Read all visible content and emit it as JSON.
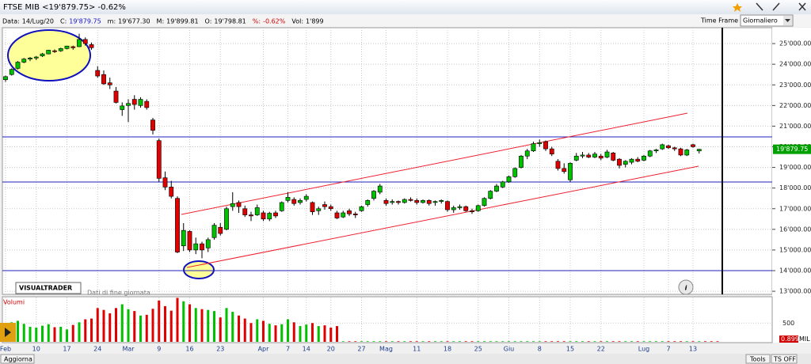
{
  "window": {
    "title": "FTSE MIB <19'879.75> -0.62%"
  },
  "info_bar": [
    {
      "label": "Data:",
      "value": "14/Lug/20"
    },
    {
      "label": "C:",
      "value": "19'879.75"
    },
    {
      "label": "m:",
      "value": "19'677.30"
    },
    {
      "label": "M:",
      "value": "19'899.81"
    },
    {
      "label": "O:",
      "value": "19'798.81"
    },
    {
      "label": "%:",
      "value": "-0.62%"
    },
    {
      "label": "Vol:",
      "value": "1'899"
    }
  ],
  "time_frame": {
    "label": "Time Frame",
    "value": "Giornaliero"
  },
  "logo": {
    "name": "VISUALTRADER",
    "note": "Dati di fine giornata"
  },
  "buttons": {
    "update": "Aggiorna",
    "tools": "Tools",
    "ts": "TS OFF"
  },
  "chart_data": {
    "type": "candlestick",
    "categories": [
      "Feb",
      null,
      null,
      null,
      null,
      "10",
      null,
      null,
      null,
      null,
      "17",
      null,
      null,
      null,
      null,
      "24",
      null,
      null,
      null,
      null,
      "Mar",
      null,
      null,
      null,
      null,
      "9",
      null,
      null,
      null,
      null,
      "16",
      null,
      null,
      null,
      null,
      "23",
      null,
      null,
      null,
      null,
      null,
      null,
      "Apr",
      null,
      null,
      null,
      "7",
      null,
      null,
      "14",
      null,
      null,
      null,
      "20",
      null,
      null,
      null,
      null,
      "27",
      null,
      null,
      null,
      "Mag",
      null,
      null,
      null,
      null,
      "11",
      null,
      null,
      null,
      null,
      "18",
      null,
      null,
      null,
      null,
      "25",
      null,
      null,
      null,
      null,
      "Giu",
      null,
      null,
      null,
      null,
      "8",
      null,
      null,
      null,
      null,
      "15",
      null,
      null,
      null,
      null,
      "22",
      null,
      null,
      null,
      null,
      null,
      null,
      "Lug",
      null,
      null,
      null,
      "7",
      null,
      null,
      null,
      "13",
      null
    ],
    "open": [
      23250,
      23500,
      23800,
      24100,
      24250,
      24300,
      24400,
      24500,
      24650,
      24650,
      24760,
      24850,
      24850,
      25200,
      24950,
      23700,
      23500,
      23100,
      22700,
      21800,
      22000,
      22300,
      22000,
      22200,
      21300,
      20300,
      18500,
      18050,
      17500,
      15200,
      15900,
      15000,
      15300,
      15100,
      15600,
      16100,
      16000,
      17100,
      17300,
      17000,
      16700,
      16700,
      16800,
      16500,
      16800,
      16900,
      17400,
      17450,
      17300,
      17450,
      17300,
      16900,
      17200,
      17100,
      16800,
      16600,
      16900,
      16750,
      16900,
      17200,
      17500,
      17800,
      17400,
      17300,
      17350,
      17300,
      17450,
      17400,
      17300,
      17400,
      17300,
      17350,
      17350,
      16950,
      17050,
      17100,
      16900,
      16900,
      17150,
      17500,
      17850,
      18050,
      18300,
      18550,
      19000,
      19550,
      19800,
      20150,
      20250,
      19900,
      19300,
      18950,
      18400,
      19350,
      19550,
      19600,
      19500,
      19550,
      19500,
      19700,
      19400,
      19150,
      19250,
      19400,
      19350,
      19550,
      19800,
      19900,
      20050,
      19950,
      19900,
      19600,
      20100,
      19798.81
    ],
    "high": [
      23450,
      23800,
      24150,
      24300,
      24350,
      24400,
      24550,
      24700,
      24720,
      24800,
      24900,
      24900,
      25480,
      25300,
      25050,
      23900,
      23700,
      23350,
      22900,
      22150,
      22300,
      22500,
      22400,
      22300,
      21400,
      20400,
      18800,
      18350,
      17600,
      16300,
      15950,
      15600,
      15400,
      15600,
      16300,
      16300,
      17100,
      17800,
      17400,
      17150,
      16850,
      17200,
      16900,
      16850,
      16900,
      17350,
      17800,
      17550,
      17500,
      17700,
      17350,
      17100,
      17350,
      17200,
      16900,
      16900,
      17000,
      16850,
      17150,
      17450,
      17900,
      18200,
      17500,
      17450,
      17400,
      17500,
      17550,
      17500,
      17450,
      17450,
      17400,
      17450,
      17400,
      17150,
      17200,
      17150,
      17000,
      17200,
      17550,
      17900,
      18200,
      18350,
      18600,
      19000,
      19600,
      19900,
      20250,
      20350,
      20300,
      20000,
      19400,
      19200,
      19250,
      19700,
      19750,
      19700,
      19750,
      19650,
      19850,
      19750,
      19450,
      19350,
      19450,
      19500,
      19600,
      19850,
      19900,
      20150,
      20100,
      20000,
      19950,
      19900,
      20150,
      19899.81
    ],
    "low": [
      23150,
      23450,
      23750,
      24050,
      24150,
      24200,
      24350,
      24480,
      24550,
      24600,
      24720,
      24700,
      24830,
      24900,
      24700,
      23350,
      23000,
      22800,
      22100,
      21500,
      21200,
      21800,
      21900,
      21800,
      20600,
      18300,
      17900,
      17500,
      14850,
      14950,
      14900,
      14800,
      14600,
      14900,
      15500,
      15700,
      15950,
      16900,
      16800,
      16600,
      16400,
      16650,
      16400,
      16400,
      16550,
      16850,
      17300,
      17150,
      17200,
      17350,
      16700,
      16700,
      16950,
      16900,
      16500,
      16550,
      16650,
      16550,
      16850,
      17100,
      17400,
      17700,
      17150,
      17200,
      17200,
      17250,
      17350,
      17200,
      17250,
      17150,
      17150,
      17250,
      16850,
      16800,
      16950,
      16850,
      16750,
      16850,
      17100,
      17450,
      17800,
      18000,
      18250,
      18500,
      18950,
      19400,
      19750,
      20000,
      19800,
      19550,
      18850,
      18700,
      18300,
      19300,
      19450,
      19450,
      19450,
      19350,
      19450,
      19300,
      18950,
      19000,
      19150,
      19250,
      19300,
      19500,
      19700,
      19850,
      19900,
      19800,
      19550,
      19550,
      19950,
      19677.3
    ],
    "close": [
      23400,
      23750,
      24100,
      24250,
      24300,
      24350,
      24500,
      24680,
      24640,
      24760,
      24880,
      24800,
      25200,
      25000,
      24800,
      23430,
      23050,
      23000,
      22150,
      21980,
      22100,
      22050,
      22300,
      21900,
      20800,
      18470,
      18050,
      17600,
      14900,
      15950,
      15000,
      15300,
      15000,
      15500,
      16200,
      15800,
      17000,
      17250,
      17100,
      16700,
      16650,
      17050,
      16500,
      16780,
      16650,
      17300,
      17550,
      17250,
      17400,
      17600,
      16850,
      17000,
      17100,
      17000,
      16550,
      16800,
      16750,
      16700,
      17100,
      17400,
      17850,
      18100,
      17250,
      17350,
      17300,
      17450,
      17400,
      17300,
      17400,
      17250,
      17350,
      17400,
      16950,
      17050,
      17100,
      16900,
      16850,
      17150,
      17500,
      17850,
      18100,
      18300,
      18550,
      18950,
      19550,
      19800,
      20150,
      20200,
      19900,
      19650,
      18950,
      18800,
      19200,
      19550,
      19600,
      19500,
      19650,
      19450,
      19750,
      19350,
      19100,
      19300,
      19400,
      19300,
      19550,
      19800,
      19850,
      20100,
      19950,
      19900,
      19600,
      19850,
      20004,
      19879.75
    ],
    "up_color": "#00c000",
    "down_color": "#e00000",
    "ylim": [
      12850,
      25770
    ],
    "yticks": [
      {
        "value": 13000,
        "label": "13'000.00"
      },
      {
        "value": 14000,
        "label": "14'000.00"
      },
      {
        "value": 15000,
        "label": "15'000.00"
      },
      {
        "value": 16000,
        "label": "16'000.00"
      },
      {
        "value": 17000,
        "label": "17'000.00"
      },
      {
        "value": 18000,
        "label": "18'000.00"
      },
      {
        "value": 19000,
        "label": "19'000.00"
      },
      {
        "value": 20000,
        "label": "20'000.00"
      },
      {
        "value": 21000,
        "label": "21'000.00"
      },
      {
        "value": 22000,
        "label": "22'000.00"
      },
      {
        "value": 23000,
        "label": "23'000.00"
      },
      {
        "value": 24000,
        "label": "24'000.00"
      },
      {
        "value": 25000,
        "label": "25'000.00"
      }
    ],
    "last_label": "19'879.75",
    "grid": true
  },
  "volume": {
    "type": "bar",
    "title": "Volumi",
    "values": [
      430,
      520,
      560,
      480,
      400,
      380,
      430,
      470,
      390,
      400,
      330,
      450,
      520,
      600,
      620,
      900,
      850,
      760,
      900,
      1000,
      870,
      820,
      700,
      720,
      880,
      1100,
      950,
      830,
      1170,
      1080,
      1000,
      900,
      870,
      850,
      820,
      650,
      900,
      800,
      700,
      620,
      500,
      600,
      560,
      480,
      440,
      470,
      600,
      520,
      420,
      460,
      500,
      420,
      440,
      380,
      420,
      15,
      15,
      15,
      15,
      15,
      15,
      15,
      15,
      15,
      15,
      15,
      15,
      15,
      15,
      15,
      15,
      15,
      15,
      15,
      15,
      15,
      15,
      15,
      15,
      15,
      15,
      15,
      15,
      15,
      15,
      15,
      15,
      15,
      15,
      15,
      15,
      15,
      15,
      15,
      15,
      15,
      15,
      15,
      15,
      15,
      15,
      15,
      15,
      15,
      15,
      15,
      15,
      15,
      15,
      15,
      15,
      15,
      15,
      15,
      15,
      15,
      15
    ],
    "ylim": [
      0,
      1180
    ],
    "yticks": [
      500
    ],
    "scale_label": "0.899",
    "unit": "MIL"
  }
}
